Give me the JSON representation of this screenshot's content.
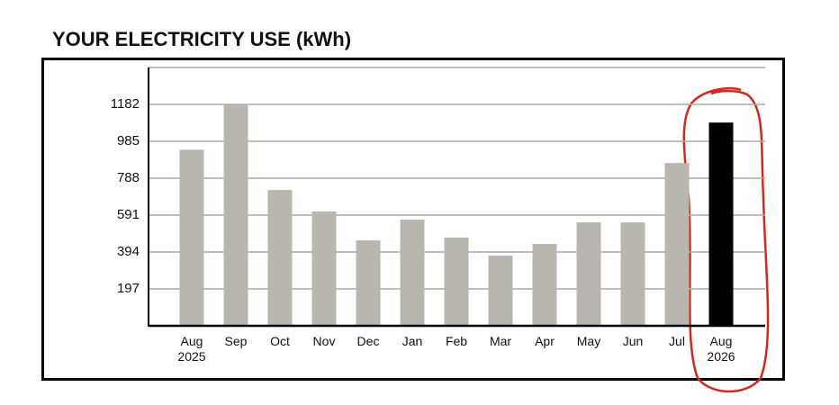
{
  "chart_data": {
    "type": "bar",
    "title": "YOUR ELECTRICITY USE (kWh)",
    "categories": [
      "Aug 2025",
      "Sep",
      "Oct",
      "Nov",
      "Dec",
      "Jan",
      "Feb",
      "Mar",
      "Apr",
      "May",
      "Jun",
      "Jul",
      "Aug 2026"
    ],
    "values": [
      940,
      1182,
      725,
      610,
      456,
      567,
      471,
      375,
      437,
      552,
      552,
      869,
      1085
    ],
    "colors": [
      "#b9b5af",
      "#b9b5af",
      "#b9b5af",
      "#b9b5af",
      "#b9b5af",
      "#b9b5af",
      "#b9b5af",
      "#b9b5af",
      "#b9b5af",
      "#b9b5af",
      "#b9b5af",
      "#b9b5af",
      "#000000"
    ],
    "ylim": [
      0,
      1379
    ],
    "yticks": [
      197,
      394,
      591,
      788,
      985,
      1182
    ],
    "grid": true
  }
}
